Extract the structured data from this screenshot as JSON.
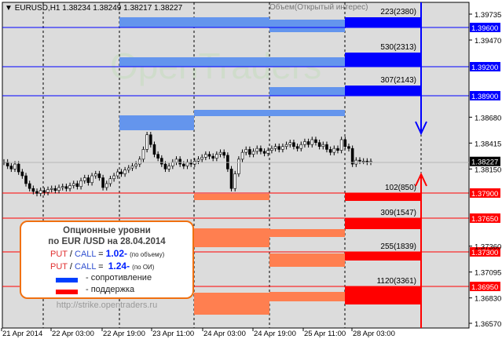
{
  "header": {
    "symbol": "EURUSD,H1",
    "ohlc": "1.38234 1.38249 1.38217 1.38227",
    "indicator": "Объем(Открытый интерес)",
    "watermark": "OpenTraders"
  },
  "colors": {
    "resistance": "#0000ff",
    "resistance_light": "#6495ed",
    "support": "#ff0000",
    "support_light": "#ff7f50",
    "background": "#dcdcdc"
  },
  "chart_data": {
    "type": "candlestick",
    "y_range": [
      1.3657,
      1.3981
    ],
    "y_ticks": [
      "1.39735",
      "1.39470",
      "1.38680",
      "1.38415",
      "1.38150",
      "1.37360",
      "1.37095",
      "1.36830",
      "1.36570"
    ],
    "x_ticks": [
      "21 Apr 2014",
      "22 Apr 03:00",
      "22 Apr 19:00",
      "23 Apr 11:00",
      "24 Apr 03:00",
      "24 Apr 19:00",
      "25 Apr 11:00",
      "28 Apr 03:00"
    ],
    "current_price": "1.38227",
    "closes": [
      1.3822,
      1.3818,
      1.3815,
      1.382,
      1.3812,
      1.3808,
      1.38,
      1.3795,
      1.3792,
      1.379,
      1.3793,
      1.3791,
      1.3794,
      1.3795,
      1.3793,
      1.3796,
      1.3797,
      1.3795,
      1.3798,
      1.38,
      1.3797,
      1.3803,
      1.3806,
      1.3801,
      1.3808,
      1.381,
      1.3806,
      1.3796,
      1.38,
      1.3805,
      1.3808,
      1.3812,
      1.381,
      1.3814,
      1.3816,
      1.3818,
      1.382,
      1.3825,
      1.3835,
      1.385,
      1.384,
      1.383,
      1.3826,
      1.382,
      1.3815,
      1.3818,
      1.3822,
      1.3825,
      1.382,
      1.3818,
      1.3822,
      1.382,
      1.3823,
      1.3825,
      1.3827,
      1.383,
      1.3828,
      1.3826,
      1.383,
      1.3832,
      1.3829,
      1.3815,
      1.3795,
      1.381,
      1.3825,
      1.3832,
      1.3835,
      1.383,
      1.3833,
      1.3836,
      1.3833,
      1.3831,
      1.3834,
      1.3836,
      1.3838,
      1.3835,
      1.3838,
      1.384,
      1.3842,
      1.3838,
      1.3836,
      1.384,
      1.3843,
      1.384,
      1.3845,
      1.3842,
      1.3838,
      1.384,
      1.3835,
      1.3832,
      1.3836,
      1.3834,
      1.3845,
      1.3838,
      1.3836,
      1.382,
      1.3824,
      1.3823,
      1.3823,
      1.3822,
      1.38227
    ],
    "resistance_levels": [
      {
        "price": "1.39600",
        "label": "223(2380)"
      },
      {
        "price": "1.39200",
        "label": "530(2313)"
      },
      {
        "price": "1.38900",
        "label": "307(2143)"
      }
    ],
    "support_levels": [
      {
        "price": "1.37900",
        "label": "102(850)"
      },
      {
        "price": "1.37650",
        "label": "309(1547)"
      },
      {
        "price": "1.37300",
        "label": "255(1839)"
      },
      {
        "price": "1.36950",
        "label": "1120(3361)"
      }
    ]
  },
  "info": {
    "title1": "Опционные уровни",
    "title2": "по EUR /USD на 28.04.2014",
    "put": "PUT",
    "slash": "/",
    "call": "CALL",
    "eq": "=",
    "ratio_volume": "1.02-",
    "ratio_volume_note": "(по объему)",
    "ratio_oi": "1.24-",
    "ratio_oi_note": "(по ОИ)",
    "legend_resistance": "- сопротивление",
    "legend_support": "- поддержка",
    "url": "http://strike.opentraders.ru"
  }
}
